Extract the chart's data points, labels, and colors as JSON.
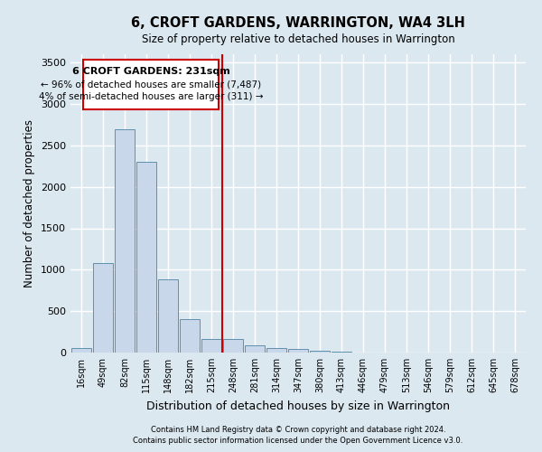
{
  "title": "6, CROFT GARDENS, WARRINGTON, WA4 3LH",
  "subtitle": "Size of property relative to detached houses in Warrington",
  "xlabel": "Distribution of detached houses by size in Warrington",
  "ylabel": "Number of detached properties",
  "annotation_title": "6 CROFT GARDENS: 231sqm",
  "annotation_line1": "← 96% of detached houses are smaller (7,487)",
  "annotation_line2": "4% of semi-detached houses are larger (311) →",
  "categories": [
    "16sqm",
    "49sqm",
    "82sqm",
    "115sqm",
    "148sqm",
    "182sqm",
    "215sqm",
    "248sqm",
    "281sqm",
    "314sqm",
    "347sqm",
    "380sqm",
    "413sqm",
    "446sqm",
    "479sqm",
    "513sqm",
    "546sqm",
    "579sqm",
    "612sqm",
    "645sqm",
    "678sqm"
  ],
  "values": [
    50,
    1080,
    2700,
    2300,
    880,
    400,
    160,
    160,
    90,
    55,
    45,
    25,
    10,
    5,
    5,
    2,
    2,
    1,
    1,
    0,
    0
  ],
  "bar_color": "#c8d8ea",
  "bar_edge_color": "#6090b0",
  "vline_color": "#cc0000",
  "vline_x": 6.5,
  "annotation_box_color": "#ffffff",
  "annotation_box_edge": "#cc0000",
  "fig_bg_color": "#dce8f0",
  "plot_bg_color": "#dce8f0",
  "grid_color": "#ffffff",
  "ylim": [
    0,
    3600
  ],
  "yticks": [
    0,
    500,
    1000,
    1500,
    2000,
    2500,
    3000,
    3500
  ],
  "footer_line1": "Contains HM Land Registry data © Crown copyright and database right 2024.",
  "footer_line2": "Contains public sector information licensed under the Open Government Licence v3.0."
}
